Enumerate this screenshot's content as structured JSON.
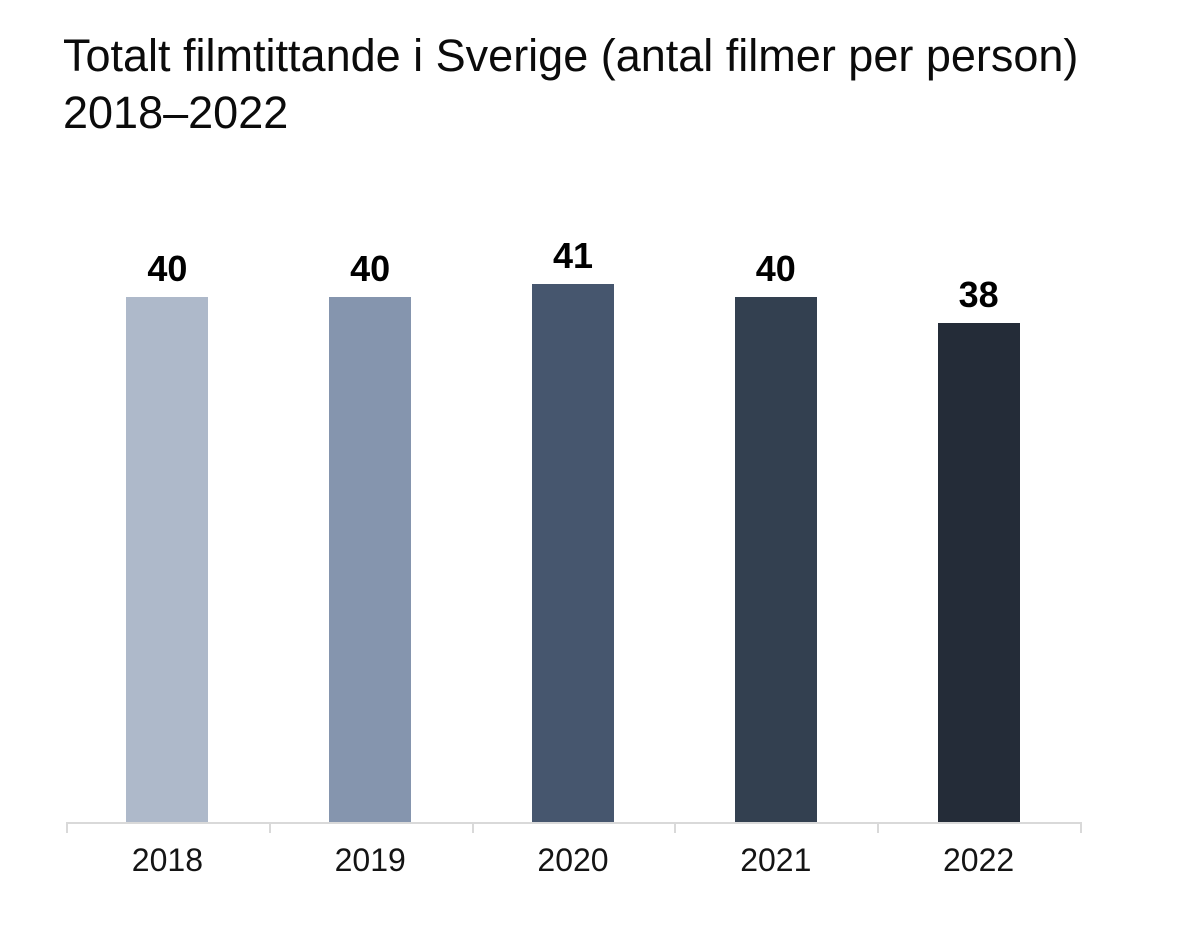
{
  "title": {
    "line1": "Totalt filmtittande i Sverige (antal filmer per person)",
    "line2": "2018–2022"
  },
  "chart_data": {
    "type": "bar",
    "title": "Totalt filmtittande i Sverige (antal filmer per person) 2018–2022",
    "categories": [
      "2018",
      "2019",
      "2020",
      "2021",
      "2022"
    ],
    "values": [
      40,
      40,
      41,
      40,
      38
    ],
    "bar_colors": [
      "#aeb9ca",
      "#8595ae",
      "#46566e",
      "#334050",
      "#242c38"
    ],
    "value_label_color": "#000000",
    "category_label_color": "#141414",
    "axis_color": "#d9d9d9",
    "background_color": "#ffffff",
    "xlabel": "",
    "ylabel": "",
    "ylim": [
      0,
      41
    ],
    "grid": false,
    "legend": "none",
    "value_labels_shown": true
  }
}
